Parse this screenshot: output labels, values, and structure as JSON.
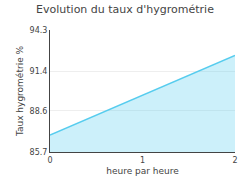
{
  "chart_data": {
    "type": "area",
    "title": "Evolution du taux d'hygrométrie",
    "xlabel": "heure par heure",
    "ylabel": "Taux hygrométrie %",
    "x": [
      0,
      2
    ],
    "series": [
      {
        "name": "Taux hygrométrie %",
        "color": "#56ccee",
        "values": [
          86.9,
          92.5
        ]
      }
    ],
    "xlim": [
      0,
      2
    ],
    "xticks": [
      0,
      1,
      2
    ],
    "ylim": [
      85.7,
      94.3
    ],
    "yticks": [
      85.7,
      88.6,
      91.4,
      94.3
    ],
    "grid": "y"
  }
}
